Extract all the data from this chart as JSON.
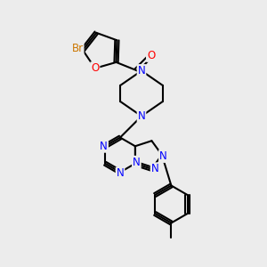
{
  "bg_color": "#ececec",
  "atom_colors": {
    "N": "#0000ff",
    "O": "#ff0000",
    "Br": "#cc7700"
  },
  "bond_color": "#000000",
  "bond_width": 1.5,
  "font_size": 8.5
}
